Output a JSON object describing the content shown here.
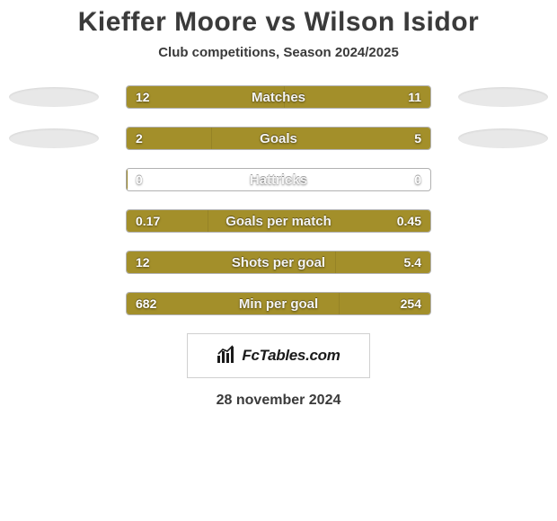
{
  "title": "Kieffer Moore vs Wilson Isidor",
  "subtitle": "Club competitions, Season 2024/2025",
  "date": "28 november 2024",
  "brand_name": "FcTables.com",
  "left_fill_color": "#a38f2a",
  "right_fill_color": "#a38f2a",
  "bar_bg": "#ffffff",
  "bar_border": "#b1b1b1",
  "ellipse_color": "#e8e8e8",
  "title_color": "#3a3a3a",
  "text_shadow_color": "rgba(0,0,0,0.5)",
  "stats": [
    {
      "label": "Matches",
      "left_value": "12",
      "right_value": "11",
      "left_pct": 52,
      "right_pct": 48,
      "show_ellipses": true
    },
    {
      "label": "Goals",
      "left_value": "2",
      "right_value": "5",
      "left_pct": 28,
      "right_pct": 72,
      "show_ellipses": true
    },
    {
      "label": "Hattricks",
      "left_value": "0",
      "right_value": "0",
      "left_pct": 0,
      "right_pct": 0,
      "show_ellipses": false
    },
    {
      "label": "Goals per match",
      "left_value": "0.17",
      "right_value": "0.45",
      "left_pct": 27,
      "right_pct": 73,
      "show_ellipses": false
    },
    {
      "label": "Shots per goal",
      "left_value": "12",
      "right_value": "5.4",
      "left_pct": 69,
      "right_pct": 31,
      "show_ellipses": false
    },
    {
      "label": "Min per goal",
      "left_value": "682",
      "right_value": "254",
      "left_pct": 70,
      "right_pct": 30,
      "show_ellipses": false
    }
  ]
}
